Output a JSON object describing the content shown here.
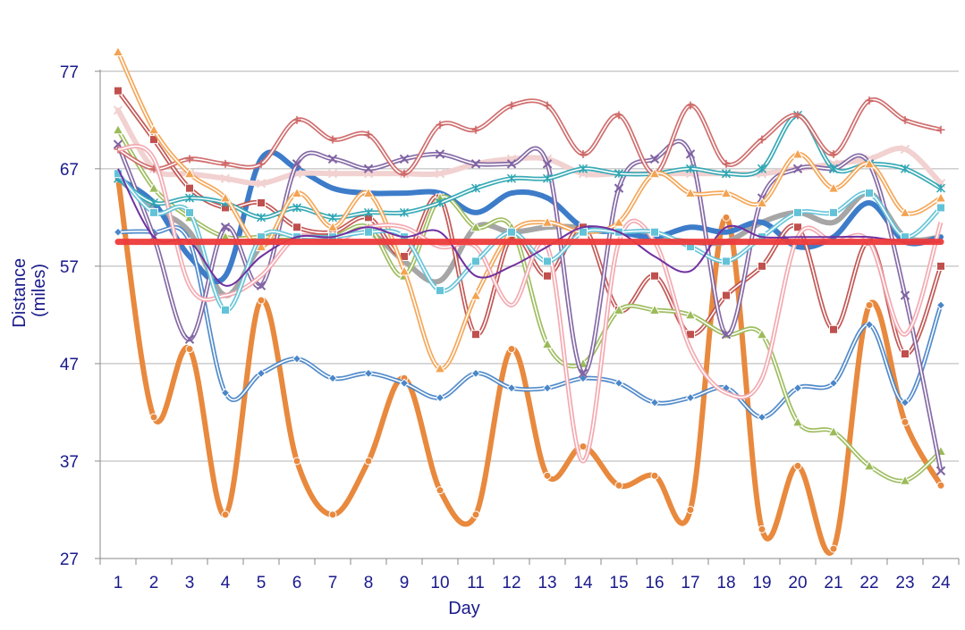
{
  "chart_data": {
    "type": "line",
    "xlabel": "Day",
    "ylabel": [
      "Distance",
      "(miles)"
    ],
    "ylim": [
      27,
      77
    ],
    "yticks": [
      27,
      37,
      47,
      57,
      67,
      77
    ],
    "x": [
      1,
      2,
      3,
      4,
      5,
      6,
      7,
      8,
      9,
      10,
      11,
      12,
      13,
      14,
      15,
      16,
      17,
      18,
      19,
      20,
      21,
      22,
      23,
      24
    ],
    "grid": "horizontal",
    "legend": "none",
    "reference_line": {
      "value": 59.5,
      "color": "#ee3b3b"
    },
    "series": [
      {
        "color": "#e8893e",
        "style": "thick",
        "marker": "circle",
        "values": [
          66,
          41.5,
          48.5,
          31.5,
          53.5,
          37,
          31.5,
          37,
          45.5,
          34,
          31.5,
          48.5,
          35.5,
          38.5,
          34.5,
          35.5,
          32,
          62,
          30,
          36.5,
          28,
          53,
          41,
          34.5
        ]
      },
      {
        "color": "#4a86c8",
        "style": "double",
        "marker": "diamond",
        "values": [
          60.5,
          60.5,
          59.5,
          44,
          46,
          47.5,
          45.5,
          46,
          45,
          43.5,
          46,
          44.5,
          44.5,
          45.5,
          45,
          43,
          43.5,
          44.5,
          41.5,
          44.5,
          45,
          51,
          43,
          53
        ]
      },
      {
        "color": "#c0504d",
        "style": "double",
        "marker": "square",
        "values": [
          75,
          70,
          65,
          63,
          63.5,
          61,
          60.5,
          62,
          58,
          64,
          50,
          60,
          56,
          61,
          52.5,
          56,
          50,
          54,
          57,
          61,
          50.5,
          59.5,
          48,
          57
        ]
      },
      {
        "color": "#9bbb59",
        "style": "double",
        "marker": "triangle",
        "values": [
          71,
          65,
          62,
          60,
          60,
          60,
          60,
          61,
          56,
          64,
          61,
          61,
          49,
          47,
          52.5,
          52.5,
          52,
          50,
          50,
          41,
          40,
          36.5,
          35,
          38
        ]
      },
      {
        "color": "#8064a2",
        "style": "double",
        "marker": "x",
        "values": [
          69.5,
          60,
          49.5,
          61,
          55,
          67.5,
          68,
          67,
          68,
          68.5,
          67.5,
          67.5,
          67.5,
          46,
          65,
          68,
          68.5,
          50,
          64,
          67,
          67,
          67.5,
          54,
          36
        ]
      },
      {
        "color": "#2ea6b3",
        "style": "double",
        "marker": "asterisk",
        "values": [
          66,
          63.5,
          64,
          63.5,
          62,
          63,
          62,
          62.5,
          62.5,
          63.5,
          65,
          66,
          66,
          67,
          66.5,
          66.5,
          67,
          66.5,
          67,
          72.5,
          67,
          67.5,
          67,
          65
        ]
      },
      {
        "color": "#cf6767",
        "style": "double",
        "marker": "plus",
        "values": [
          69,
          67,
          68,
          67.5,
          67.5,
          72,
          70,
          70.5,
          66.5,
          71.5,
          71,
          73.5,
          73.5,
          68.5,
          72.5,
          66.5,
          73.5,
          67.5,
          70,
          72.5,
          68.5,
          74,
          72,
          71
        ]
      },
      {
        "color": "#f4a352",
        "style": "double",
        "marker": "triangle",
        "values": [
          79,
          71,
          66.5,
          64,
          59,
          64.5,
          61,
          64.5,
          56.5,
          46.5,
          54,
          60.5,
          61.5,
          60.5,
          61.5,
          66.5,
          64.5,
          64.5,
          63.5,
          68.5,
          65,
          67.5,
          62.5,
          64
        ]
      },
      {
        "color": "#f2a7ae",
        "style": "double",
        "marker": "none",
        "values": [
          69,
          68,
          55,
          54,
          56,
          60,
          59.5,
          61,
          61,
          59,
          59,
          53,
          59,
          37,
          59.5,
          59.5,
          48.5,
          44,
          45.5,
          60,
          59.5,
          59.5,
          50,
          61.5
        ]
      },
      {
        "color": "#62c3d8",
        "style": "double",
        "marker": "square",
        "values": [
          66.5,
          62.5,
          62.5,
          52.5,
          60,
          60,
          60,
          60.5,
          60,
          54.5,
          57.5,
          60.5,
          57.5,
          60.5,
          60.5,
          60.5,
          59,
          57.5,
          60,
          62.5,
          62.5,
          64.5,
          60,
          63
        ]
      },
      {
        "color": "#7030a0",
        "style": "normal",
        "marker": "none",
        "values": [
          67,
          60,
          59.5,
          55,
          58,
          60,
          60,
          61,
          60,
          60.5,
          56,
          57,
          59,
          61,
          60.5,
          58,
          56.5,
          61,
          60,
          60,
          60,
          60,
          59.5,
          59.5
        ]
      },
      {
        "color": "#a6a6a6",
        "style": "thick",
        "marker": "none",
        "values": [
          66,
          63,
          60.5,
          54,
          59,
          60,
          60,
          60.5,
          57.5,
          55.5,
          61,
          60.5,
          61,
          61,
          60.5,
          60,
          59.5,
          59.5,
          61.5,
          62.5,
          61.5,
          64.5,
          60,
          60
        ]
      },
      {
        "color": "#3d7cc9",
        "style": "thick",
        "marker": "none",
        "values": [
          66,
          63.5,
          58,
          56,
          68,
          67,
          65,
          64.5,
          64.5,
          64.5,
          62.5,
          64.5,
          64,
          61,
          60.5,
          60,
          61,
          60.5,
          61.5,
          59,
          60,
          63.5,
          59.5,
          60
        ]
      },
      {
        "color": "#f2d1d1",
        "style": "thick",
        "marker": "x",
        "values": [
          73,
          67,
          66.5,
          66,
          65.5,
          66.5,
          66.5,
          66.5,
          66.5,
          66.5,
          67.5,
          68,
          68,
          66.5,
          66.5,
          66.5,
          66.5,
          66.5,
          66.5,
          67,
          67.5,
          68,
          69,
          65.5
        ]
      }
    ]
  }
}
